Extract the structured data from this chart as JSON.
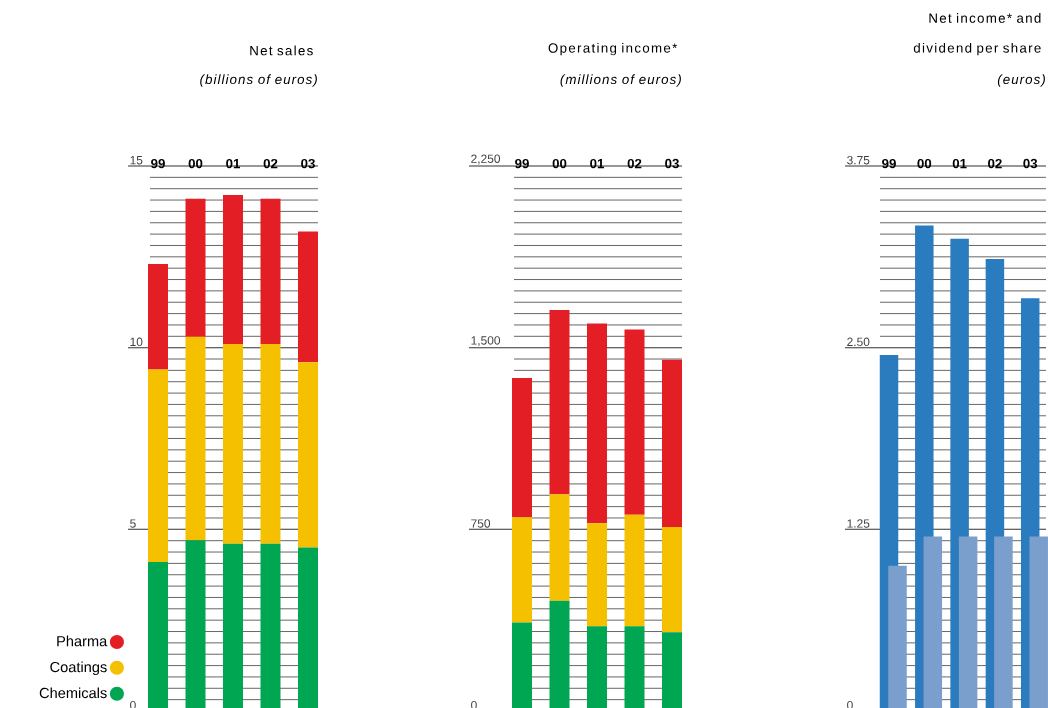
{
  "chart_data": [
    {
      "type": "bar",
      "title": "Net sales",
      "subtitle": "(billions of euros)",
      "categories": [
        "99",
        "00",
        "01",
        "02",
        "03"
      ],
      "stacked": true,
      "legend": "bottom left",
      "grid": "y",
      "ylim": [
        0,
        15
      ],
      "yticks": [
        0,
        5,
        10,
        15
      ],
      "series": [
        {
          "name": "Chemicals",
          "color": "#00a651",
          "values": [
            4.1,
            4.7,
            4.6,
            4.6,
            4.5
          ]
        },
        {
          "name": "Coatings",
          "color": "#f5c000",
          "values": [
            5.3,
            5.6,
            5.5,
            5.5,
            5.1
          ]
        },
        {
          "name": "Pharma",
          "color": "#e31e24",
          "values": [
            2.9,
            3.8,
            4.1,
            4.0,
            3.6
          ]
        }
      ]
    },
    {
      "type": "bar",
      "title": "Operating income*",
      "subtitle": "(millions of euros)",
      "categories": [
        "99",
        "00",
        "01",
        "02",
        "03"
      ],
      "stacked": true,
      "grid": "y",
      "ylim": [
        0,
        2250
      ],
      "yticks": [
        0,
        750,
        {
          "value": 1500,
          "label": "1,500"
        },
        {
          "value": 2250,
          "label": "2,250"
        }
      ],
      "series": [
        {
          "color": "#00a651",
          "values": [
            365,
            455,
            350,
            350,
            325
          ]
        },
        {
          "color": "#f5c000",
          "values": [
            435,
            440,
            425,
            460,
            435
          ]
        },
        {
          "color": "#e31e24",
          "values": [
            575,
            760,
            825,
            765,
            690
          ]
        }
      ]
    },
    {
      "type": "bar",
      "title": "Net income* and dividend per share",
      "subtitle": "(euros)",
      "categories": [
        "99",
        "00",
        "01",
        "02",
        "03"
      ],
      "grid": "y",
      "ylim": [
        0,
        3.75
      ],
      "yticks": [
        0,
        1.25,
        {
          "value": 2.5,
          "label": "2.50"
        },
        3.75
      ],
      "series": [
        {
          "color": "#2b7bbf",
          "values": [
            2.45,
            3.34,
            3.25,
            3.11,
            2.84
          ]
        },
        {
          "color": "#7b9fcc",
          "values": [
            1.0,
            1.2,
            1.2,
            1.2,
            1.2
          ]
        }
      ]
    }
  ]
}
